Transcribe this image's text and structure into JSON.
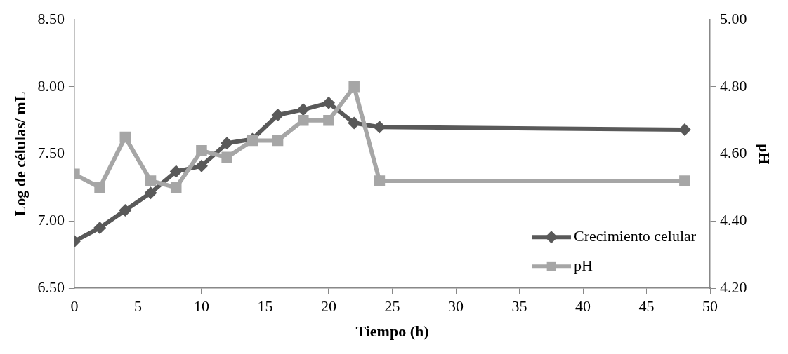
{
  "chart_data": {
    "type": "line",
    "xlabel": "Tiempo (h)",
    "ylabel": "Log de células/ mL",
    "y2label": "pH",
    "xlim": [
      0,
      50
    ],
    "xticks": [
      0,
      5,
      10,
      15,
      20,
      25,
      30,
      35,
      40,
      45,
      50
    ],
    "ylim": [
      6.5,
      8.5
    ],
    "yticks": [
      {
        "value": 6.5,
        "label": "6.50"
      },
      {
        "value": 7,
        "label": "7.00"
      },
      {
        "value": 7.5,
        "label": "7.50"
      },
      {
        "value": 8,
        "label": "8.00"
      },
      {
        "value": 8.5,
        "label": "8.50"
      }
    ],
    "y2lim": [
      4.2,
      5.0
    ],
    "y2ticks": [
      {
        "value": 4.2,
        "label": "4.20"
      },
      {
        "value": 4.4,
        "label": "4.40"
      },
      {
        "value": 4.6,
        "label": "4.60"
      },
      {
        "value": 4.8,
        "label": "4.80"
      },
      {
        "value": 5.0,
        "label": "5.00"
      }
    ],
    "grid": false,
    "legend": "bottom right",
    "line_style": "solid",
    "x": [
      0,
      2,
      4,
      6,
      8,
      10,
      12,
      14,
      16,
      18,
      20,
      22,
      24,
      48
    ],
    "series": [
      {
        "name": "Crecimiento celular",
        "color": "#595959",
        "marker": "diamond",
        "values": [
          6.85,
          6.95,
          7.08,
          7.21,
          7.37,
          7.41,
          7.58,
          7.61,
          7.79,
          7.83,
          7.88,
          7.73,
          7.7,
          7.68
        ]
      },
      {
        "name": "pH",
        "color": "#a6a6a6",
        "marker": "square",
        "axis": "y2",
        "values": [
          4.54,
          4.5,
          4.65,
          4.52,
          4.5,
          4.61,
          4.59,
          4.64,
          4.64,
          4.7,
          4.7,
          4.8,
          4.52,
          4.52
        ]
      }
    ]
  }
}
